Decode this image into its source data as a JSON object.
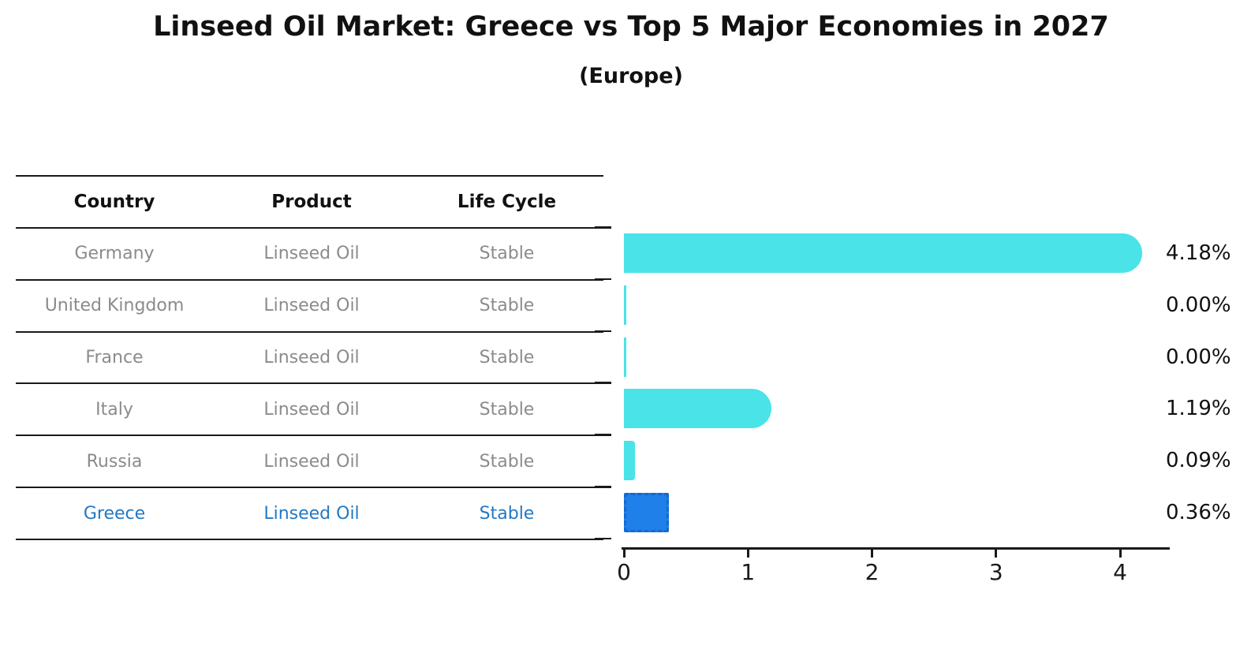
{
  "title": "Linseed Oil Market: Greece vs Top 5 Major Economies in 2027",
  "subtitle": "(Europe)",
  "table": {
    "headers": [
      "Country",
      "Product",
      "Life Cycle"
    ],
    "rows": [
      {
        "country": "Germany",
        "product": "Linseed Oil",
        "life_cycle": "Stable",
        "highlight": false
      },
      {
        "country": "United Kingdom",
        "product": "Linseed Oil",
        "life_cycle": "Stable",
        "highlight": false
      },
      {
        "country": "France",
        "product": "Linseed Oil",
        "life_cycle": "Stable",
        "highlight": false
      },
      {
        "country": "Italy",
        "product": "Linseed Oil",
        "life_cycle": "Stable",
        "highlight": false
      },
      {
        "country": "Russia",
        "product": "Linseed Oil",
        "life_cycle": "Stable",
        "highlight": false
      },
      {
        "country": "Greece",
        "product": "Linseed Oil",
        "life_cycle": "Stable",
        "highlight": true
      }
    ]
  },
  "chart_data": {
    "type": "bar",
    "orientation": "horizontal",
    "title": "Linseed Oil Market: Greece vs Top 5 Major Economies in 2027",
    "subtitle": "(Europe)",
    "categories": [
      "Germany",
      "United Kingdom",
      "France",
      "Italy",
      "Russia",
      "Greece"
    ],
    "values": [
      4.18,
      0.0,
      0.0,
      1.19,
      0.09,
      0.36
    ],
    "value_labels": [
      "4.18%",
      "0.00%",
      "0.00%",
      "1.19%",
      "0.09%",
      "0.36%"
    ],
    "xlim": [
      0,
      4.4
    ],
    "xticks": [
      "0",
      "1",
      "2",
      "3",
      "4"
    ],
    "xlabel": "",
    "ylabel": "",
    "grid": false,
    "legend": false,
    "highlight_index": 5,
    "bar_color": "#49E3E8",
    "highlight_bar_color": "#1E80E8",
    "highlight_bar_edge_color": "#1669CF",
    "highlight_text_color": "#2279C4",
    "label_color": "#111111"
  }
}
